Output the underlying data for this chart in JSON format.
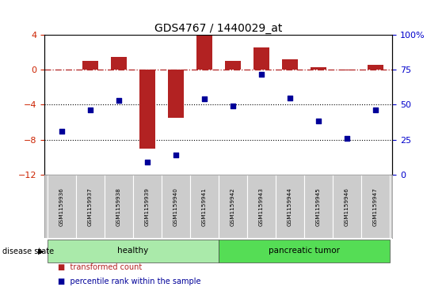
{
  "title": "GDS4767 / 1440029_at",
  "samples": [
    "GSM1159936",
    "GSM1159937",
    "GSM1159938",
    "GSM1159939",
    "GSM1159940",
    "GSM1159941",
    "GSM1159942",
    "GSM1159943",
    "GSM1159944",
    "GSM1159945",
    "GSM1159946",
    "GSM1159947"
  ],
  "bar_values": [
    0.0,
    1.0,
    1.4,
    -9.0,
    -5.5,
    3.85,
    1.0,
    2.5,
    1.2,
    0.3,
    -0.1,
    0.55
  ],
  "dot_left_values": [
    -7.0,
    -4.6,
    -3.5,
    -10.5,
    -9.7,
    -3.3,
    -4.1,
    -0.5,
    -3.2,
    -5.8,
    -7.8,
    -4.6
  ],
  "bar_color": "#b22222",
  "dot_color": "#000099",
  "disease_groups": [
    {
      "label": "healthy",
      "start": 0,
      "end": 5,
      "color": "#aaeaaa"
    },
    {
      "label": "pancreatic tumor",
      "start": 6,
      "end": 11,
      "color": "#55dd55"
    }
  ],
  "ylim_left": [
    -12,
    4
  ],
  "ylim_right": [
    0,
    100
  ],
  "left_yticks": [
    -12,
    -8,
    -4,
    0,
    4
  ],
  "right_yticks": [
    0,
    25,
    50,
    75,
    100
  ],
  "hline_y": 0,
  "dotted_lines": [
    -4,
    -8
  ],
  "bg_color": "#ffffff",
  "tick_color_left": "#cc2200",
  "tick_color_right": "#0000cc",
  "legend_tc": "transformed count",
  "legend_pr": "percentile rank within the sample",
  "disease_state_label": "disease state",
  "label_bg": "#cccccc"
}
